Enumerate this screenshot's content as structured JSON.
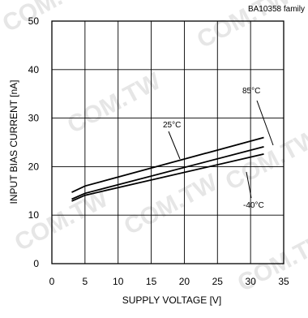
{
  "chart_data": {
    "type": "line",
    "title": "BA10358  family",
    "xlabel": "SUPPLY VOLTAGE [V]",
    "ylabel": "INPUT BIAS CURRENT [nA]",
    "xlim": [
      0,
      35
    ],
    "ylim": [
      0,
      50
    ],
    "xticks": [
      0,
      5,
      10,
      15,
      20,
      25,
      30,
      35
    ],
    "yticks": [
      0,
      10,
      20,
      30,
      40,
      50
    ],
    "grid": true,
    "legend": "none",
    "series": [
      {
        "name": "25°C",
        "x": [
          3,
          5,
          32
        ],
        "values": [
          14.7,
          16.0,
          26.0
        ]
      },
      {
        "name": "85°C",
        "x": [
          3,
          5,
          32
        ],
        "values": [
          13.3,
          14.5,
          24.1
        ]
      },
      {
        "name": "-40°C",
        "x": [
          3,
          5,
          32
        ],
        "values": [
          12.9,
          14.1,
          22.6
        ]
      }
    ],
    "annotations": [
      {
        "text": "25°C",
        "series": "25°C"
      },
      {
        "text": "85°C",
        "series": "85°C"
      },
      {
        "text": "-40°C",
        "series": "-40°C"
      }
    ],
    "watermark": "COM.TW",
    "colors": {
      "line": "#000000",
      "grid": "#000000",
      "watermark": "#e6e6e6"
    }
  }
}
